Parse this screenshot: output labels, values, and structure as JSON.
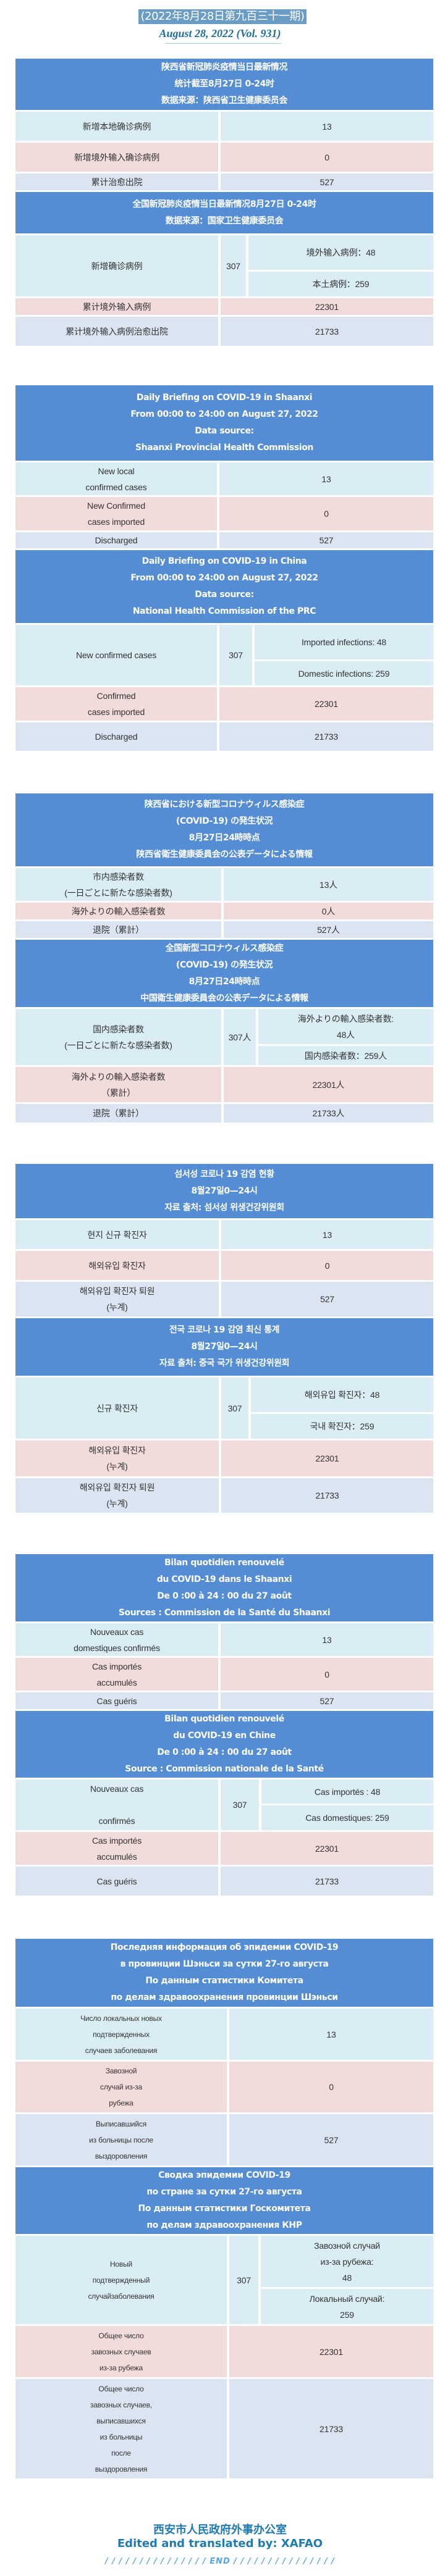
{
  "issue_badge": "(2022年8月28日第九百三十一期)",
  "issue_date": "August 28, 2022 (Vol. 931)",
  "colors": {
    "header": "#548dd4",
    "row_blue": "#daedf4",
    "row_pink": "#f2dcdb",
    "row_grey": "#dbe5f1",
    "badge": "#6a9dc6",
    "footer": "#1f7ab0"
  },
  "tables": [
    {
      "province": {
        "header": [
          "陕西省新冠肺炎疫情当日最新情况",
          "统计截至8月27日 0-24时",
          "数据来源：陕西省卫生健康委员会"
        ],
        "rows": [
          {
            "label": [
              "新增本地确诊病例"
            ],
            "value": "13"
          },
          {
            "label": [
              "新增境外输入确诊病例"
            ],
            "value": "0"
          },
          {
            "label": [
              "累计治愈出院"
            ],
            "value": "527"
          }
        ]
      },
      "national": {
        "header": [
          "全国新冠肺炎疫情当日最新情况8月27日 0-24时",
          "数据来源：国家卫生健康委员会"
        ],
        "new_cases": {
          "label": [
            "新增确诊病例"
          ],
          "value": "307",
          "imported": [
            "境外输入病例：48"
          ],
          "domestic": [
            "本土病例：259"
          ]
        },
        "rows": [
          {
            "label": [
              "累计境外输入病例"
            ],
            "value": "22301"
          },
          {
            "label": [
              "累计境外输入病例治愈出院"
            ],
            "value": "21733"
          }
        ]
      }
    },
    {
      "province": {
        "header": [
          "Daily Briefing on COVID-19 in Shaanxi",
          "From 00:00 to 24:00 on August 27, 2022",
          "Data source:",
          "Shaanxi Provincial Health Commission"
        ],
        "rows": [
          {
            "label": [
              "New local",
              "confirmed cases"
            ],
            "value": "13"
          },
          {
            "label": [
              "New Confirmed",
              "cases imported"
            ],
            "value": "0"
          },
          {
            "label": [
              "Discharged"
            ],
            "value": "527"
          }
        ]
      },
      "national": {
        "header": [
          "Daily Briefing on COVID-19 in China",
          "From 00:00 to 24:00 on  August 27, 2022",
          "Data source:",
          "National Health Commission of the PRC"
        ],
        "new_cases": {
          "label": [
            "New confirmed cases"
          ],
          "value": "307",
          "imported": [
            "Imported infections: 48"
          ],
          "domestic": [
            "Domestic infections: 259"
          ]
        },
        "rows": [
          {
            "label": [
              "Confirmed",
              "cases imported"
            ],
            "value": "22301"
          },
          {
            "label": [
              "Discharged"
            ],
            "value": "21733"
          }
        ]
      }
    },
    {
      "province": {
        "header": [
          "陕西省における新型コロナウィルス感染症",
          "(COVID-19) の発生状況",
          "8月27日24時時点",
          "陕西省衛生健康委員会の公表データによる情報"
        ],
        "rows": [
          {
            "label": [
              "市内感染者数",
              "(一日ごとに新たな感染者数)"
            ],
            "value": "13人"
          },
          {
            "label": [
              "海外よりの輸入感染者数"
            ],
            "value": "0人"
          },
          {
            "label": [
              "退院（累計）"
            ],
            "value": "527人"
          }
        ]
      },
      "national": {
        "header": [
          "全国新型コロナウィルス感染症",
          "(COVID-19) の発生状況",
          "8月27日24時時点",
          "中国衛生健康委員会の公表データによる情報"
        ],
        "new_cases": {
          "label": [
            "国内感染者数",
            "(一日ごとに新たな感染者数)"
          ],
          "value": "307人",
          "imported": [
            "海外よりの輸入感染者数:",
            "48人"
          ],
          "domestic": [
            "国内感染者数：259人"
          ]
        },
        "rows": [
          {
            "label": [
              "海外よりの輸入感染者数",
              "（累計）"
            ],
            "value": "22301人"
          },
          {
            "label": [
              "退院（累計）"
            ],
            "value": "21733人"
          }
        ]
      }
    },
    {
      "province": {
        "header": [
          "섬서성 코로나 19 감염 현황",
          "8월27일0—24시",
          "자료 출처: 섬서성 위생건강위원회"
        ],
        "rows": [
          {
            "label": [
              "현지 신규 확진자"
            ],
            "value": "13"
          },
          {
            "label": [
              "해외유입 확진자"
            ],
            "value": "0"
          },
          {
            "label": [
              "해외유입 확진자 퇴원",
              "(누계)"
            ],
            "value": "527"
          }
        ]
      },
      "national": {
        "header": [
          "전국 코로나 19 감염 최신 통계",
          "8월27일0—24시",
          "자료 출처: 중국 국가 위생건강위원회"
        ],
        "new_cases": {
          "label": [
            "신규 확진자"
          ],
          "value": "307",
          "imported": [
            "해외유입 확진자：48"
          ],
          "domestic": [
            "국내 확진자：259"
          ]
        },
        "rows": [
          {
            "label": [
              "해외유입 확진자",
              "(누계)"
            ],
            "value": "22301"
          },
          {
            "label": [
              "해외유입 확진자 퇴원",
              "(누계)"
            ],
            "value": "21733"
          }
        ]
      }
    },
    {
      "province": {
        "header": [
          "Bilan quotidien renouvelé",
          "du COVID-19 dans le Shaanxi",
          "De 0 :00 à 24 : 00 du 27 août",
          "Sources : Commission de la Santé du Shaanxi"
        ],
        "rows": [
          {
            "label": [
              "Nouveaux cas",
              "domestiques confirmés"
            ],
            "value": "13"
          },
          {
            "label": [
              "Cas importés",
              "accumulés"
            ],
            "value": "0"
          },
          {
            "label": [
              "Cas guéris"
            ],
            "value": "527"
          }
        ]
      },
      "national": {
        "header": [
          "Bilan quotidien renouvelé",
          "du COVID-19 en Chine",
          "De 0 :00 à 24 : 00 du 27 août",
          "Source : Commission nationale de la Santé"
        ],
        "new_cases": {
          "label": [
            "Nouveaux cas",
            "",
            "confirmés"
          ],
          "value": "307",
          "imported": [
            "Cas importés : 48"
          ],
          "domestic": [
            "Cas domestiques: 259"
          ]
        },
        "rows": [
          {
            "label": [
              "Cas importés",
              "accumulés"
            ],
            "value": "22301"
          },
          {
            "label": [
              "Cas guéris"
            ],
            "value": "21733"
          }
        ]
      }
    },
    {
      "province": {
        "header": [
          "Последняя информация об эпидемии COVID-19",
          "в провинции Шэньси за сутки  27-го августа",
          "По данным статистики Комитета",
          "по делам здравоохранения провинции Шэньси"
        ],
        "rows": [
          {
            "label": [
              "Число локальных новых",
              "подтвержденных",
              "случаев заболевания"
            ],
            "value": "13"
          },
          {
            "label": [
              "Завозной",
              "случай из-за",
              "рубежа"
            ],
            "value": "0"
          },
          {
            "label": [
              "Выписавшийся",
              "из больницы после",
              "выздоровления"
            ],
            "value": "527"
          }
        ]
      },
      "national": {
        "header": [
          "Сводка эпидемии COVID-19",
          "по стране за сутки  27-го августа",
          "По данным статистики Госкомитета",
          "по делам здравоохранения КНР"
        ],
        "new_cases": {
          "label": [
            "Новый",
            "подтвержденный",
            "случайзаболевания"
          ],
          "value": "307",
          "imported": [
            "Завозной случай",
            "из-за рубежа:",
            "48"
          ],
          "domestic": [
            "Локальный случай:",
            "259"
          ]
        },
        "rows": [
          {
            "label": [
              "Общее число",
              "завозных случаев",
              "из-за рубежа"
            ],
            "value": "22301"
          },
          {
            "label": [
              "Общее число",
              "завозных случаев,",
              "выписавшихся",
              "из больницы",
              "после",
              "выздоровления"
            ],
            "value": "21733"
          }
        ]
      }
    }
  ],
  "footer": {
    "org_cn": "西安市人民政府外事办公室",
    "credit": "Edited and translated by: XAFAO",
    "end_mark": "/ / / / / / / / / / / / / / / END / / / / / / / / / / / / / / /"
  }
}
